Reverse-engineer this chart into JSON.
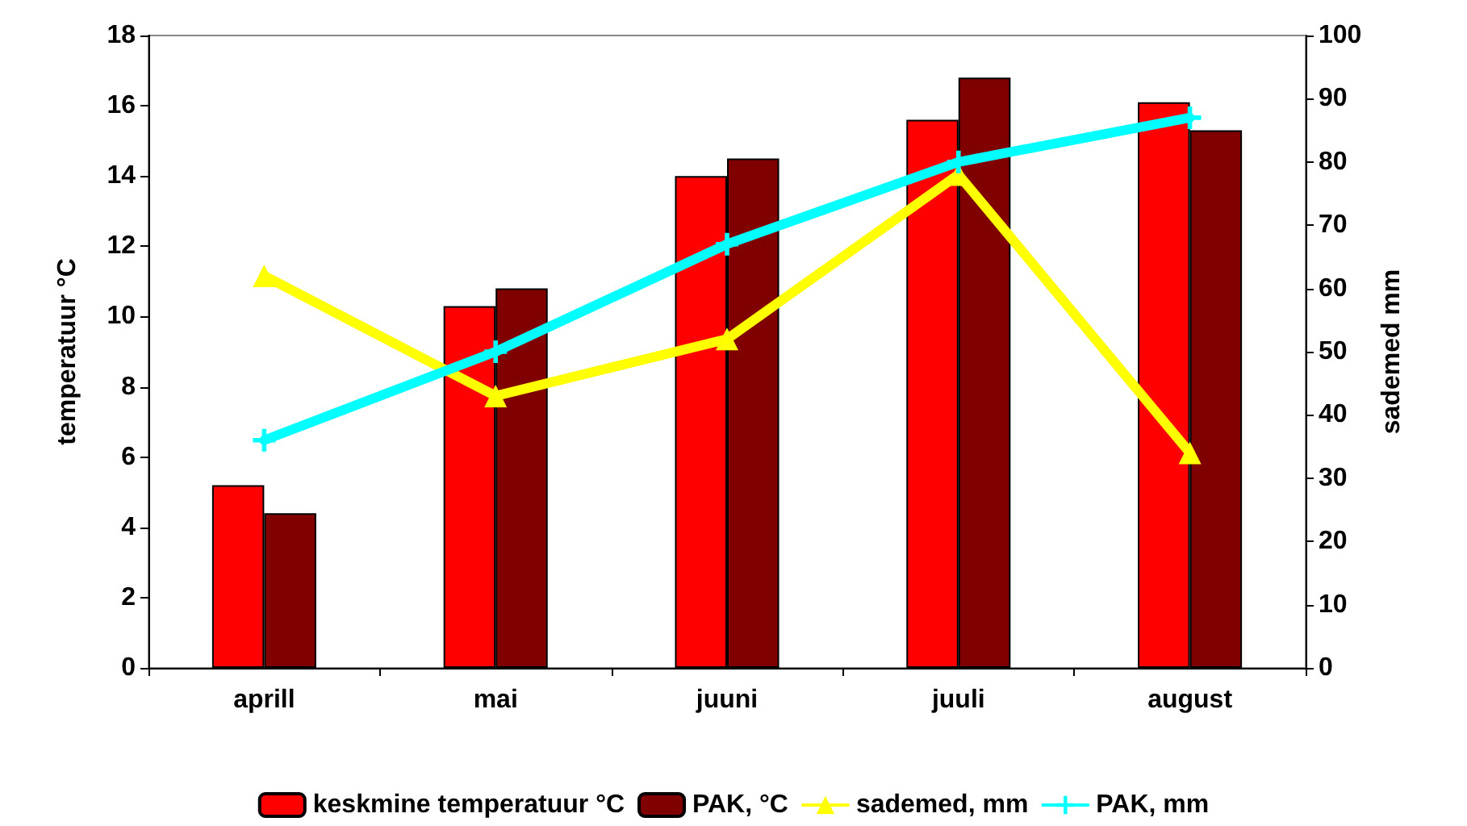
{
  "chart_data": {
    "type": "bar",
    "ylabel": "temperatuur °C",
    "y2label": "sademed mm",
    "categories": [
      "aprill",
      "mai",
      "juuni",
      "juuli",
      "august"
    ],
    "series": [
      {
        "name": "keskmine temperatuur °C",
        "color": "#ff0000",
        "values": [
          5.2,
          10.3,
          14.0,
          15.6,
          16.1
        ]
      },
      {
        "name": "PAK, °C",
        "color": "#800000",
        "values": [
          4.4,
          10.8,
          14.5,
          16.8,
          15.3
        ]
      },
      {
        "name": "sademed, mm",
        "type": "line",
        "axis": "y2",
        "marker": "triangle",
        "color": "#ffff00",
        "values": [
          62,
          43,
          52,
          78,
          34
        ]
      },
      {
        "name": "PAK, mm",
        "type": "line",
        "axis": "y2",
        "marker": "cross",
        "color": "#00ffff",
        "values": [
          36,
          50,
          67,
          80,
          87
        ]
      }
    ],
    "ylim": [
      0,
      18
    ],
    "yticks": [
      0,
      2,
      4,
      6,
      8,
      10,
      12,
      14,
      16,
      18
    ],
    "y2lim": [
      0,
      100
    ],
    "y2ticks": [
      0,
      10,
      20,
      30,
      40,
      50,
      60,
      70,
      80,
      90,
      100
    ],
    "grid": false,
    "legend": "bottom"
  }
}
